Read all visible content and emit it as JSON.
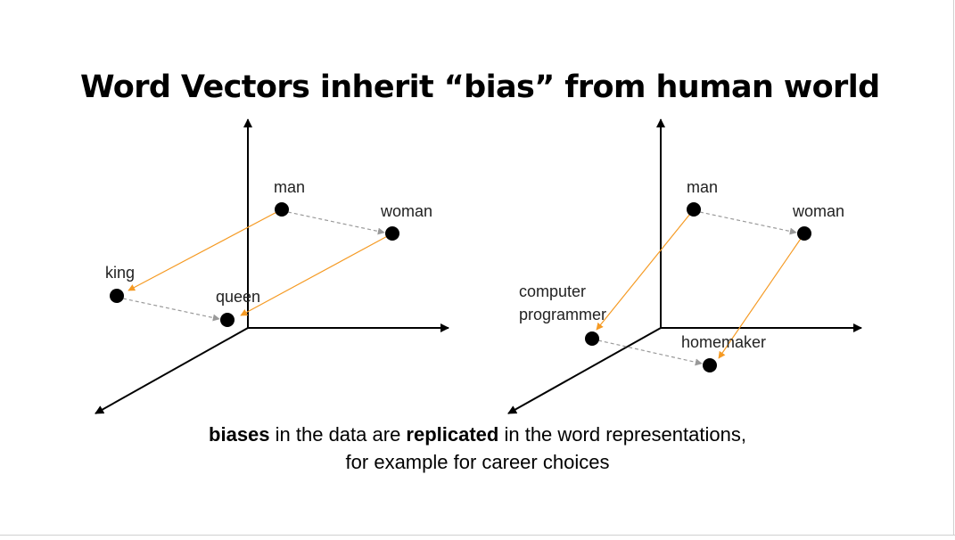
{
  "title": "Word Vectors inherit “bias” from human world",
  "colors": {
    "analogy_arrow": "#f59a23",
    "gender_arrow": "#999999",
    "axis": "#000000",
    "point": "#000000"
  },
  "diagram_left": {
    "points": {
      "man": "man",
      "woman": "woman",
      "king": "king",
      "queen": "queen"
    }
  },
  "diagram_right": {
    "points": {
      "man": "man",
      "woman": "woman",
      "computer_programmer_line1": "computer",
      "computer_programmer_line2": "programmer",
      "homemaker": "homemaker"
    }
  },
  "caption": {
    "line1_bold1": "biases",
    "line1_text1": " in the data are ",
    "line1_bold2": "replicated",
    "line1_text2": " in the word representations,",
    "line2": "for example for career choices"
  }
}
